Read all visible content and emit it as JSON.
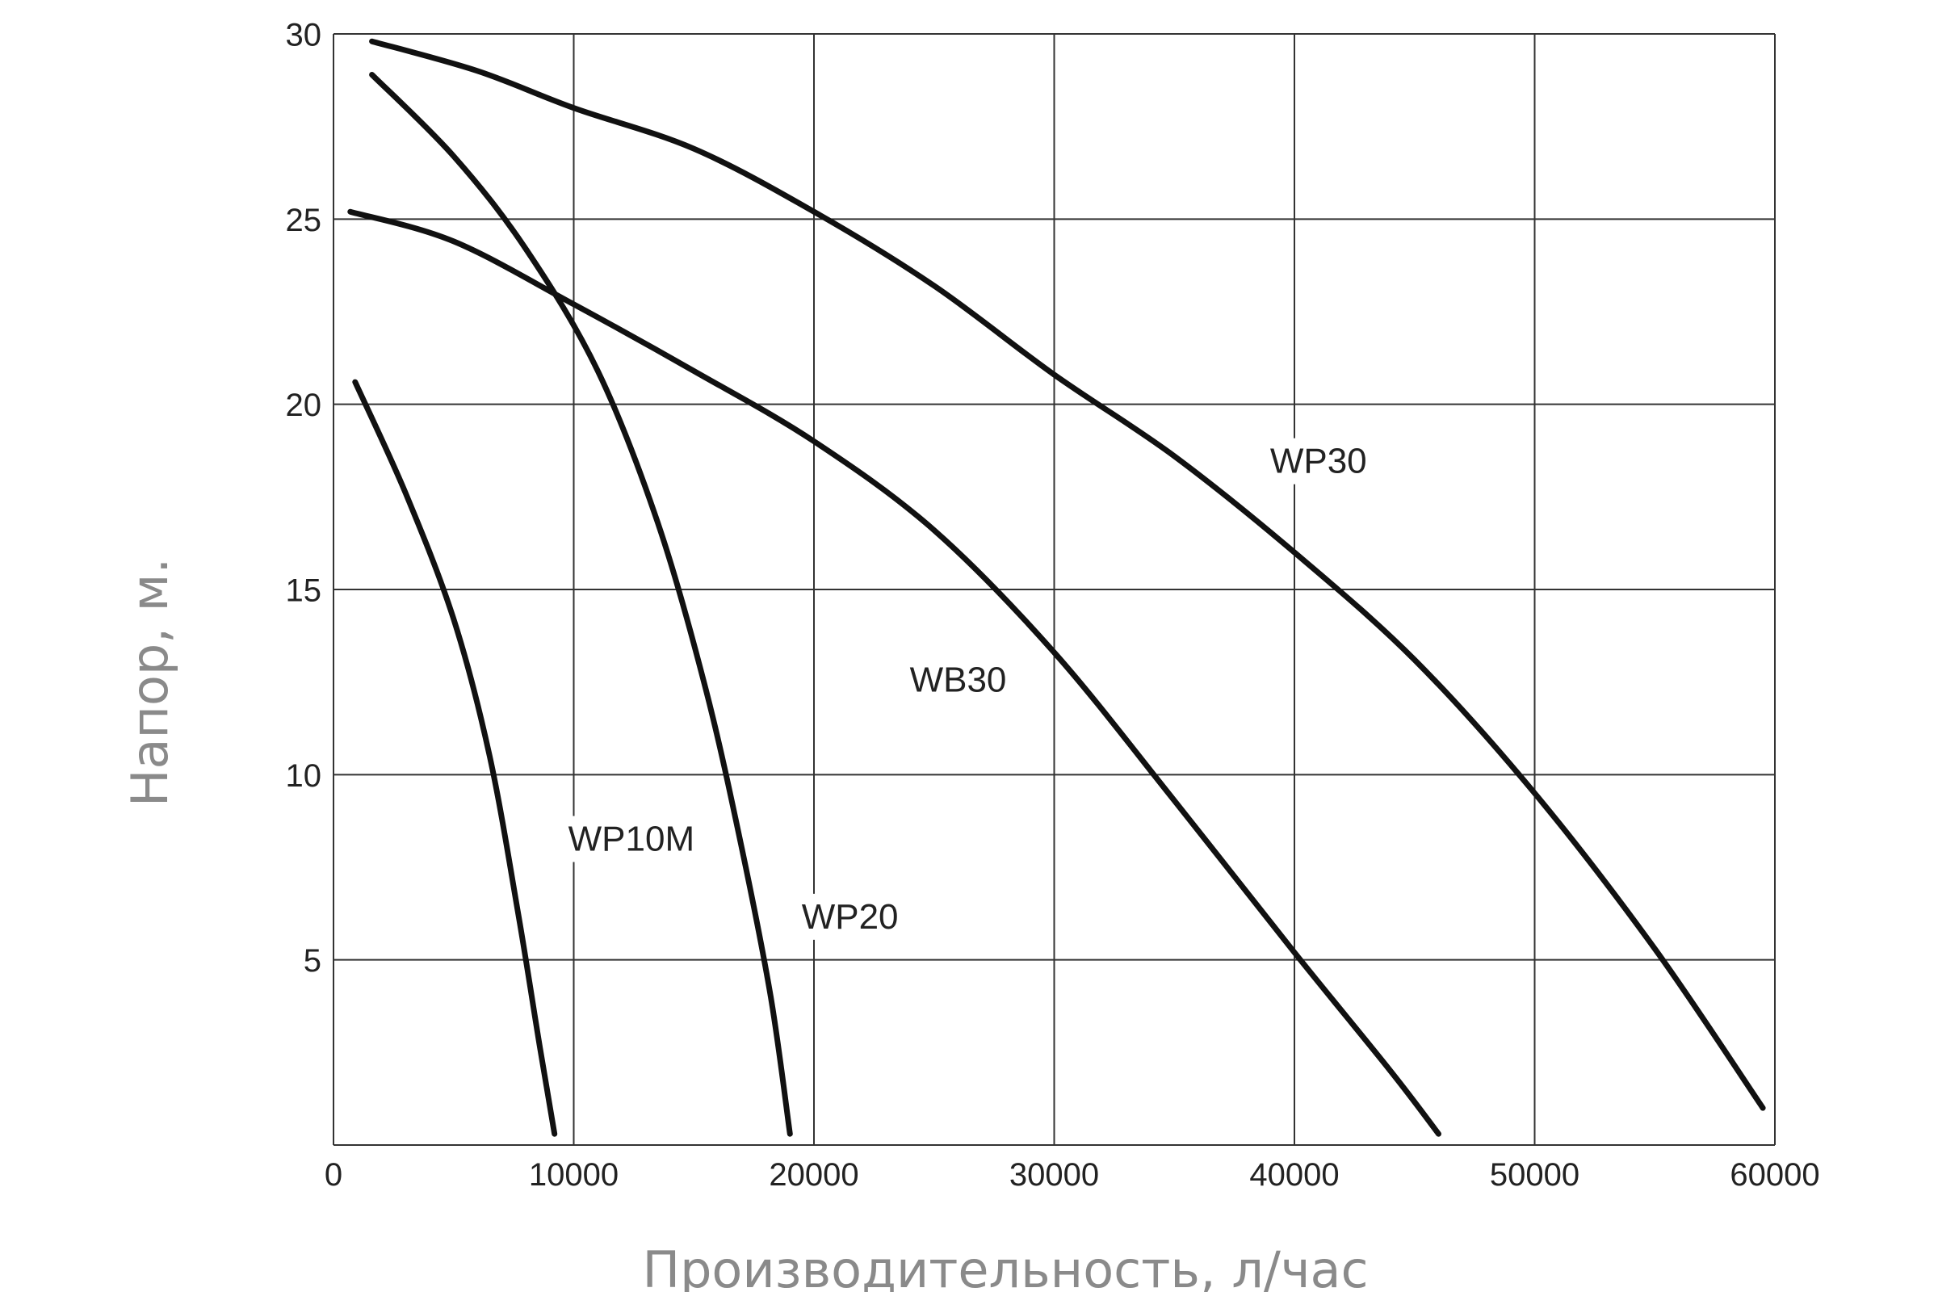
{
  "chart_data": {
    "type": "line",
    "xlabel": "Производительность, л/час",
    "ylabel": "Напор, м.",
    "xlim": [
      0,
      60000
    ],
    "ylim": [
      0,
      30
    ],
    "x_ticks": [
      0,
      10000,
      20000,
      30000,
      40000,
      50000,
      60000
    ],
    "y_ticks": [
      5,
      10,
      15,
      20,
      25,
      30
    ],
    "x_tick_labels": [
      "0",
      "10000",
      "20000",
      "30000",
      "40000",
      "50000",
      "60000"
    ],
    "y_tick_labels": [
      "5",
      "10",
      "15",
      "20",
      "25",
      "30"
    ],
    "grid": true,
    "colors": {
      "line": "#111111",
      "grid": "#333333",
      "axis_title": "#8a8a8a",
      "tick": "#222222"
    },
    "series": [
      {
        "name": "WP10M",
        "label_at": [
          12400,
          8.2
        ],
        "points": [
          [
            900,
            20.6
          ],
          [
            3000,
            17.6
          ],
          [
            5000,
            14.2
          ],
          [
            6500,
            10.5
          ],
          [
            7700,
            6.2
          ],
          [
            8600,
            2.6
          ],
          [
            9200,
            0.3
          ]
        ]
      },
      {
        "name": "WP20",
        "label_at": [
          21500,
          6.1
        ],
        "points": [
          [
            1600,
            28.9
          ],
          [
            5000,
            26.7
          ],
          [
            8000,
            24.2
          ],
          [
            11000,
            20.9
          ],
          [
            13500,
            16.8
          ],
          [
            15500,
            12.3
          ],
          [
            17000,
            8.0
          ],
          [
            18200,
            4.0
          ],
          [
            19000,
            0.3
          ]
        ]
      },
      {
        "name": "WB30",
        "label_at": [
          26000,
          12.5
        ],
        "points": [
          [
            700,
            25.2
          ],
          [
            5000,
            24.4
          ],
          [
            10000,
            22.7
          ],
          [
            15000,
            20.9
          ],
          [
            20000,
            19.0
          ],
          [
            25000,
            16.6
          ],
          [
            30000,
            13.3
          ],
          [
            35000,
            9.3
          ],
          [
            40000,
            5.2
          ],
          [
            44000,
            2.0
          ],
          [
            46000,
            0.3
          ]
        ]
      },
      {
        "name": "WP30",
        "label_at": [
          41000,
          18.4
        ],
        "points": [
          [
            1600,
            29.8
          ],
          [
            6000,
            29.0
          ],
          [
            10000,
            28.0
          ],
          [
            15000,
            26.9
          ],
          [
            20000,
            25.2
          ],
          [
            25000,
            23.2
          ],
          [
            30000,
            20.8
          ],
          [
            35000,
            18.6
          ],
          [
            40000,
            16.0
          ],
          [
            45000,
            13.1
          ],
          [
            50000,
            9.5
          ],
          [
            55000,
            5.3
          ],
          [
            59500,
            1.0
          ]
        ]
      }
    ]
  }
}
